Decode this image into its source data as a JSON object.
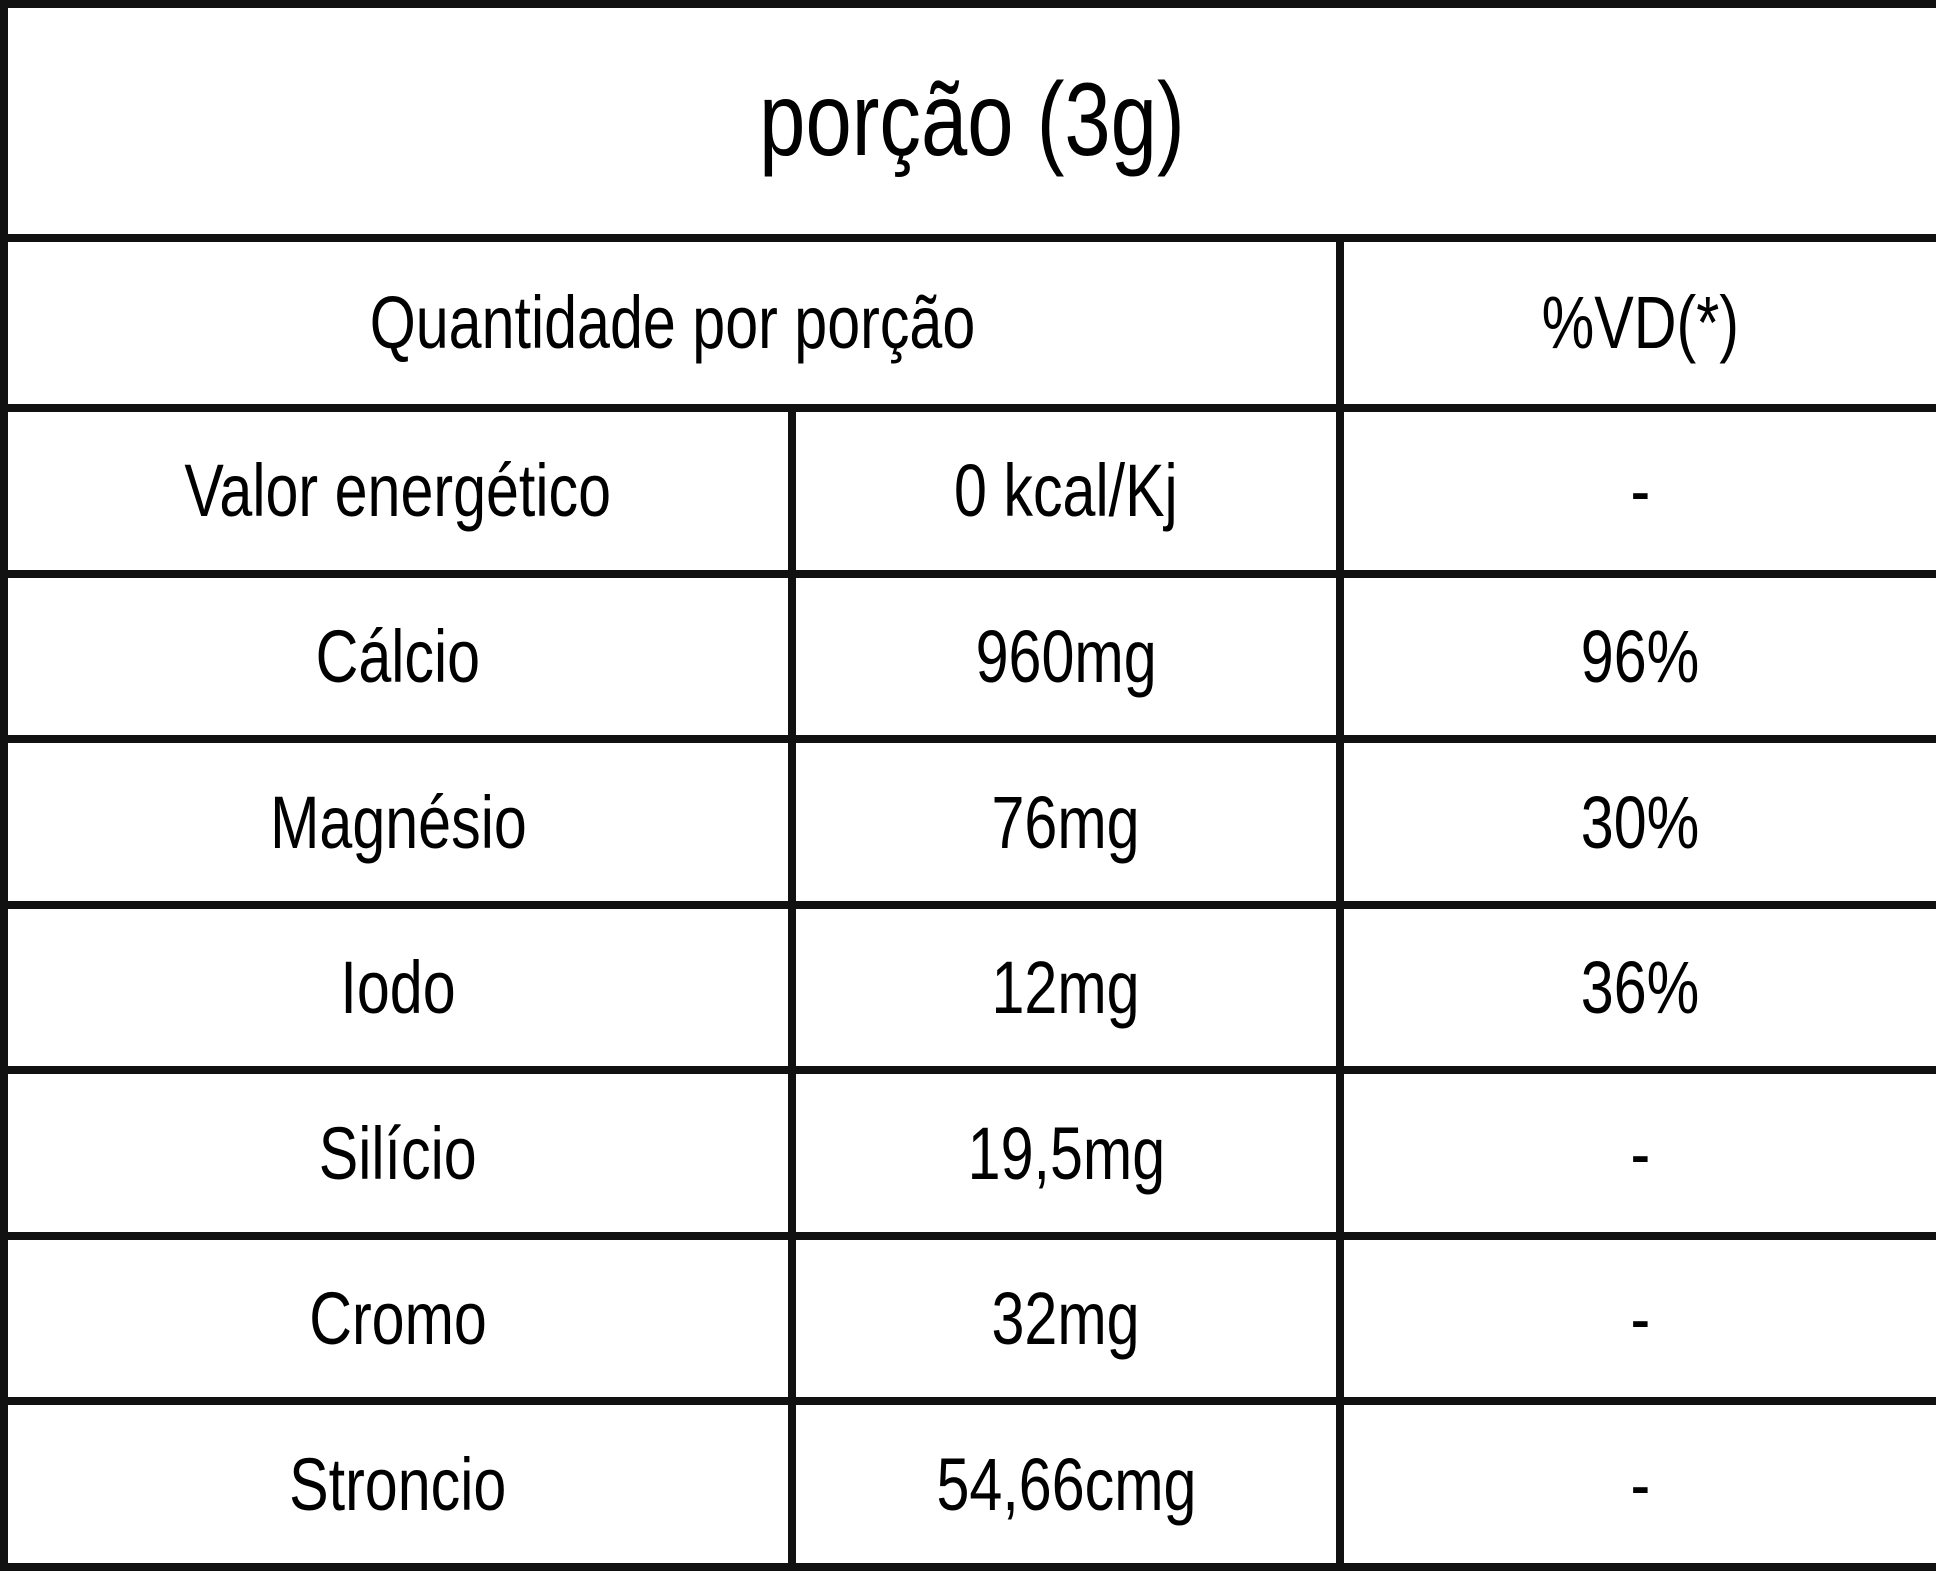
{
  "title": "porção (3g)",
  "header": [
    "Quantidade por porção",
    "%VD(*)"
  ],
  "rows": [
    [
      "Valor energético",
      "0 kcal/Kj",
      "-"
    ],
    [
      "Cálcio",
      "960mg",
      "96%"
    ],
    [
      "Magnésio",
      "76mg",
      "30%"
    ],
    [
      "Iodo",
      "12mg",
      "36%"
    ],
    [
      "Silício",
      "19,5mg",
      "-"
    ],
    [
      "Cromo",
      "32mg",
      "-"
    ],
    [
      "Stroncio",
      "54,66cmg",
      "-"
    ]
  ]
}
